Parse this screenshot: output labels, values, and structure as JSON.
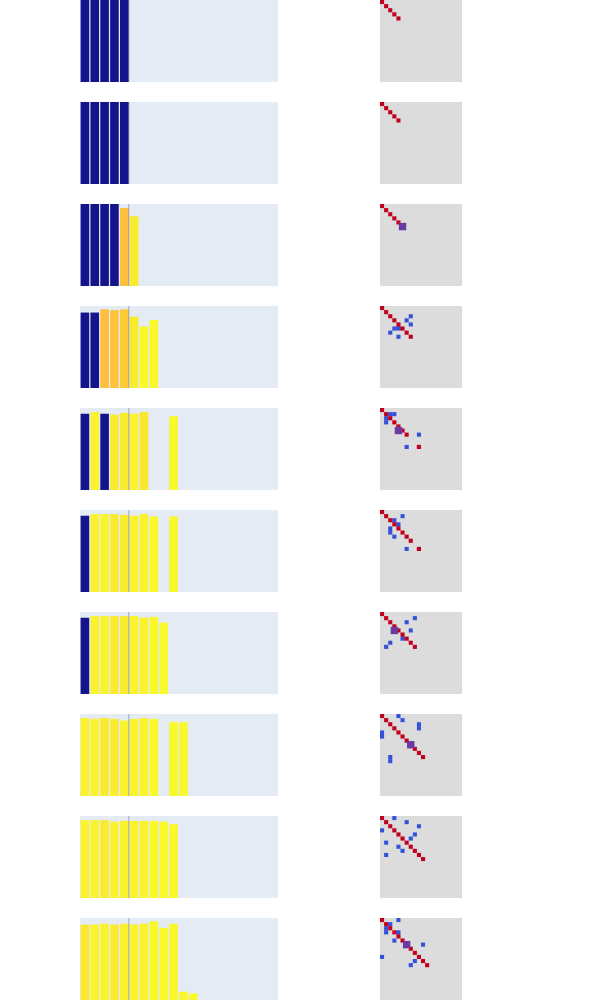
{
  "title": "",
  "colors": {
    "page_background": "#ffffff",
    "bar_panel_background": "#e4ebf4",
    "matrix_background": "#dcdcdc",
    "divider_line": "#8a96a8",
    "diagonal_cell": "#c0001e",
    "off_diagonal_cell": "#3352d8",
    "overlap_cell": "#6a3aa0"
  },
  "bar_color_scale": {
    "low": "#14148c",
    "mid": "#ffbe3c",
    "high": "#f8f82a"
  },
  "bar_panel": {
    "ylim": [
      0,
      1
    ],
    "bar_count_capacity": 20,
    "divider_after_bar": 5
  },
  "matrix_panel": {
    "grid_size": 20
  },
  "chart_data": [
    {
      "type": "bar",
      "row": 1,
      "bars": [
        {
          "v": 1.0,
          "c": 0.0
        },
        {
          "v": 1.0,
          "c": 0.0
        },
        {
          "v": 1.0,
          "c": 0.0
        },
        {
          "v": 1.0,
          "c": 0.0
        },
        {
          "v": 1.0,
          "c": 0.0
        }
      ],
      "matrix": {
        "diagonal": [
          0,
          1,
          2,
          3,
          4
        ],
        "off_diagonal": [],
        "overlap": []
      }
    },
    {
      "type": "bar",
      "row": 2,
      "bars": [
        {
          "v": 1.0,
          "c": 0.0
        },
        {
          "v": 1.0,
          "c": 0.0
        },
        {
          "v": 1.0,
          "c": 0.0
        },
        {
          "v": 1.0,
          "c": 0.0
        },
        {
          "v": 1.0,
          "c": 0.0
        }
      ],
      "matrix": {
        "diagonal": [
          0,
          1,
          2,
          3,
          4
        ],
        "off_diagonal": [],
        "overlap": []
      }
    },
    {
      "type": "bar",
      "row": 3,
      "bars": [
        {
          "v": 1.0,
          "c": 0.0
        },
        {
          "v": 1.0,
          "c": 0.0
        },
        {
          "v": 1.0,
          "c": 0.0
        },
        {
          "v": 1.0,
          "c": 0.0
        },
        {
          "v": 0.95,
          "c": 0.5
        },
        {
          "v": 0.85,
          "c": 0.9
        }
      ],
      "matrix": {
        "diagonal": [
          0,
          1,
          2,
          3,
          4
        ],
        "off_diagonal": [],
        "overlap": [
          [
            5,
            5
          ]
        ]
      }
    },
    {
      "type": "bar",
      "row": 4,
      "bars": [
        {
          "v": 0.92,
          "c": 0.0
        },
        {
          "v": 0.92,
          "c": 0.0
        },
        {
          "v": 0.96,
          "c": 0.5
        },
        {
          "v": 0.95,
          "c": 0.55
        },
        {
          "v": 0.96,
          "c": 0.6
        },
        {
          "v": 0.87,
          "c": 0.9
        },
        {
          "v": 0.75,
          "c": 1.0
        },
        {
          "v": 0.83,
          "c": 1.0
        }
      ],
      "matrix": {
        "diagonal": [
          0,
          1,
          2,
          3,
          4,
          5,
          6,
          7
        ],
        "off_diagonal": [
          [
            6,
            2
          ],
          [
            5,
            3
          ],
          [
            5,
            4
          ],
          [
            7,
            4
          ],
          [
            3,
            6
          ],
          [
            2,
            7
          ],
          [
            4,
            7
          ]
        ],
        "overlap": []
      }
    },
    {
      "type": "bar",
      "row": 5,
      "bars": [
        {
          "v": 0.93,
          "c": 0.0
        },
        {
          "v": 0.95,
          "c": 0.95
        },
        {
          "v": 0.93,
          "c": 0.0
        },
        {
          "v": 0.92,
          "c": 0.9
        },
        {
          "v": 0.94,
          "c": 0.9
        },
        {
          "v": 0.93,
          "c": 0.95
        },
        {
          "v": 0.95,
          "c": 0.85
        },
        {
          "v": 0,
          "c": 1.0
        },
        {
          "v": 0,
          "c": 1.0
        },
        {
          "v": 0.9,
          "c": 1.0
        }
      ],
      "matrix": {
        "diagonal": [
          0,
          1,
          2,
          3,
          4,
          5,
          6,
          9
        ],
        "off_diagonal": [
          [
            1,
            2
          ],
          [
            1,
            3
          ],
          [
            2,
            1
          ],
          [
            3,
            1
          ],
          [
            6,
            9
          ],
          [
            9,
            6
          ],
          [
            9,
            9
          ]
        ],
        "overlap": [
          [
            5,
            4
          ]
        ]
      }
    },
    {
      "type": "bar",
      "row": 6,
      "bars": [
        {
          "v": 0.93,
          "c": 0.0
        },
        {
          "v": 0.95,
          "c": 0.95
        },
        {
          "v": 0.95,
          "c": 0.95
        },
        {
          "v": 0.95,
          "c": 0.9
        },
        {
          "v": 0.94,
          "c": 0.9
        },
        {
          "v": 0.93,
          "c": 0.95
        },
        {
          "v": 0.95,
          "c": 0.95
        },
        {
          "v": 0.92,
          "c": 1.0
        },
        {
          "v": 0,
          "c": 1.0
        },
        {
          "v": 0.92,
          "c": 1.0
        }
      ],
      "matrix": {
        "diagonal": [
          0,
          1,
          2,
          3,
          4,
          5,
          6,
          7,
          9
        ],
        "off_diagonal": [
          [
            5,
            2
          ],
          [
            2,
            3
          ],
          [
            4,
            2
          ],
          [
            6,
            3
          ],
          [
            3,
            4
          ],
          [
            1,
            5
          ],
          [
            9,
            6
          ],
          [
            9,
            9
          ]
        ],
        "overlap": []
      }
    },
    {
      "type": "bar",
      "row": 7,
      "bars": [
        {
          "v": 0.93,
          "c": 0.0
        },
        {
          "v": 0.95,
          "c": 0.95
        },
        {
          "v": 0.95,
          "c": 0.95
        },
        {
          "v": 0.95,
          "c": 0.9
        },
        {
          "v": 0.95,
          "c": 0.9
        },
        {
          "v": 0.95,
          "c": 0.95
        },
        {
          "v": 0.93,
          "c": 0.95
        },
        {
          "v": 0.94,
          "c": 1.0
        },
        {
          "v": 0.87,
          "c": 1.0
        }
      ],
      "matrix": {
        "diagonal": [
          0,
          1,
          2,
          3,
          4,
          5,
          6,
          7,
          8
        ],
        "off_diagonal": [
          [
            8,
            1
          ],
          [
            7,
            2
          ],
          [
            2,
            6
          ],
          [
            4,
            7
          ],
          [
            1,
            8
          ],
          [
            6,
            5
          ]
        ],
        "overlap": [
          [
            4,
            3
          ]
        ]
      }
    },
    {
      "type": "bar",
      "row": 8,
      "bars": [
        {
          "v": 0.95,
          "c": 0.95
        },
        {
          "v": 0.94,
          "c": 0.95
        },
        {
          "v": 0.95,
          "c": 0.9
        },
        {
          "v": 0.94,
          "c": 0.9
        },
        {
          "v": 0.92,
          "c": 0.95
        },
        {
          "v": 0.94,
          "c": 0.95
        },
        {
          "v": 0.95,
          "c": 0.95
        },
        {
          "v": 0.94,
          "c": 1.0
        },
        {
          "v": 0,
          "c": 1.0
        },
        {
          "v": 0.9,
          "c": 1.0
        },
        {
          "v": 0.9,
          "c": 1.0
        }
      ],
      "matrix": {
        "diagonal": [
          0,
          1,
          2,
          3,
          4,
          5,
          6,
          7,
          8,
          9,
          10
        ],
        "off_diagonal": [
          [
            4,
            0
          ],
          [
            5,
            0
          ],
          [
            0,
            4
          ],
          [
            1,
            5
          ],
          [
            10,
            2
          ],
          [
            11,
            2
          ],
          [
            2,
            9
          ],
          [
            3,
            9
          ]
        ],
        "overlap": [
          [
            7,
            7
          ]
        ]
      }
    },
    {
      "type": "bar",
      "row": 9,
      "bars": [
        {
          "v": 0.95,
          "c": 0.95
        },
        {
          "v": 0.95,
          "c": 0.95
        },
        {
          "v": 0.95,
          "c": 0.9
        },
        {
          "v": 0.93,
          "c": 0.95
        },
        {
          "v": 0.94,
          "c": 0.95
        },
        {
          "v": 0.94,
          "c": 0.95
        },
        {
          "v": 0.94,
          "c": 0.95
        },
        {
          "v": 0.94,
          "c": 1.0
        },
        {
          "v": 0.93,
          "c": 1.0
        },
        {
          "v": 0.9,
          "c": 1.0
        }
      ],
      "matrix": {
        "diagonal": [
          0,
          1,
          2,
          3,
          4,
          5,
          6,
          7,
          8,
          9,
          10
        ],
        "off_diagonal": [
          [
            3,
            0
          ],
          [
            6,
            1
          ],
          [
            9,
            1
          ],
          [
            0,
            3
          ],
          [
            1,
            6
          ],
          [
            8,
            5
          ],
          [
            5,
            7
          ],
          [
            4,
            8
          ],
          [
            2,
            9
          ],
          [
            7,
            4
          ]
        ],
        "overlap": []
      }
    },
    {
      "type": "bar",
      "row": 10,
      "bars": [
        {
          "v": 0.92,
          "c": 0.85
        },
        {
          "v": 0.92,
          "c": 0.95
        },
        {
          "v": 0.93,
          "c": 0.95
        },
        {
          "v": 0.92,
          "c": 0.9
        },
        {
          "v": 0.93,
          "c": 0.95
        },
        {
          "v": 0.92,
          "c": 0.95
        },
        {
          "v": 0.93,
          "c": 0.95
        },
        {
          "v": 0.96,
          "c": 1.0
        },
        {
          "v": 0.88,
          "c": 1.0
        },
        {
          "v": 0.93,
          "c": 1.0
        },
        {
          "v": 0.1,
          "c": 1.0
        },
        {
          "v": 0.08,
          "c": 1.0
        }
      ],
      "matrix": {
        "diagonal": [
          0,
          1,
          2,
          3,
          4,
          5,
          6,
          7,
          8,
          9,
          10,
          11
        ],
        "off_diagonal": [
          [
            2,
            1
          ],
          [
            3,
            1
          ],
          [
            9,
            0
          ],
          [
            0,
            4
          ],
          [
            1,
            2
          ],
          [
            3,
            4
          ],
          [
            6,
            10
          ],
          [
            11,
            7
          ],
          [
            10,
            8
          ],
          [
            5,
            3
          ]
        ],
        "overlap": [
          [
            6,
            6
          ]
        ]
      }
    }
  ]
}
